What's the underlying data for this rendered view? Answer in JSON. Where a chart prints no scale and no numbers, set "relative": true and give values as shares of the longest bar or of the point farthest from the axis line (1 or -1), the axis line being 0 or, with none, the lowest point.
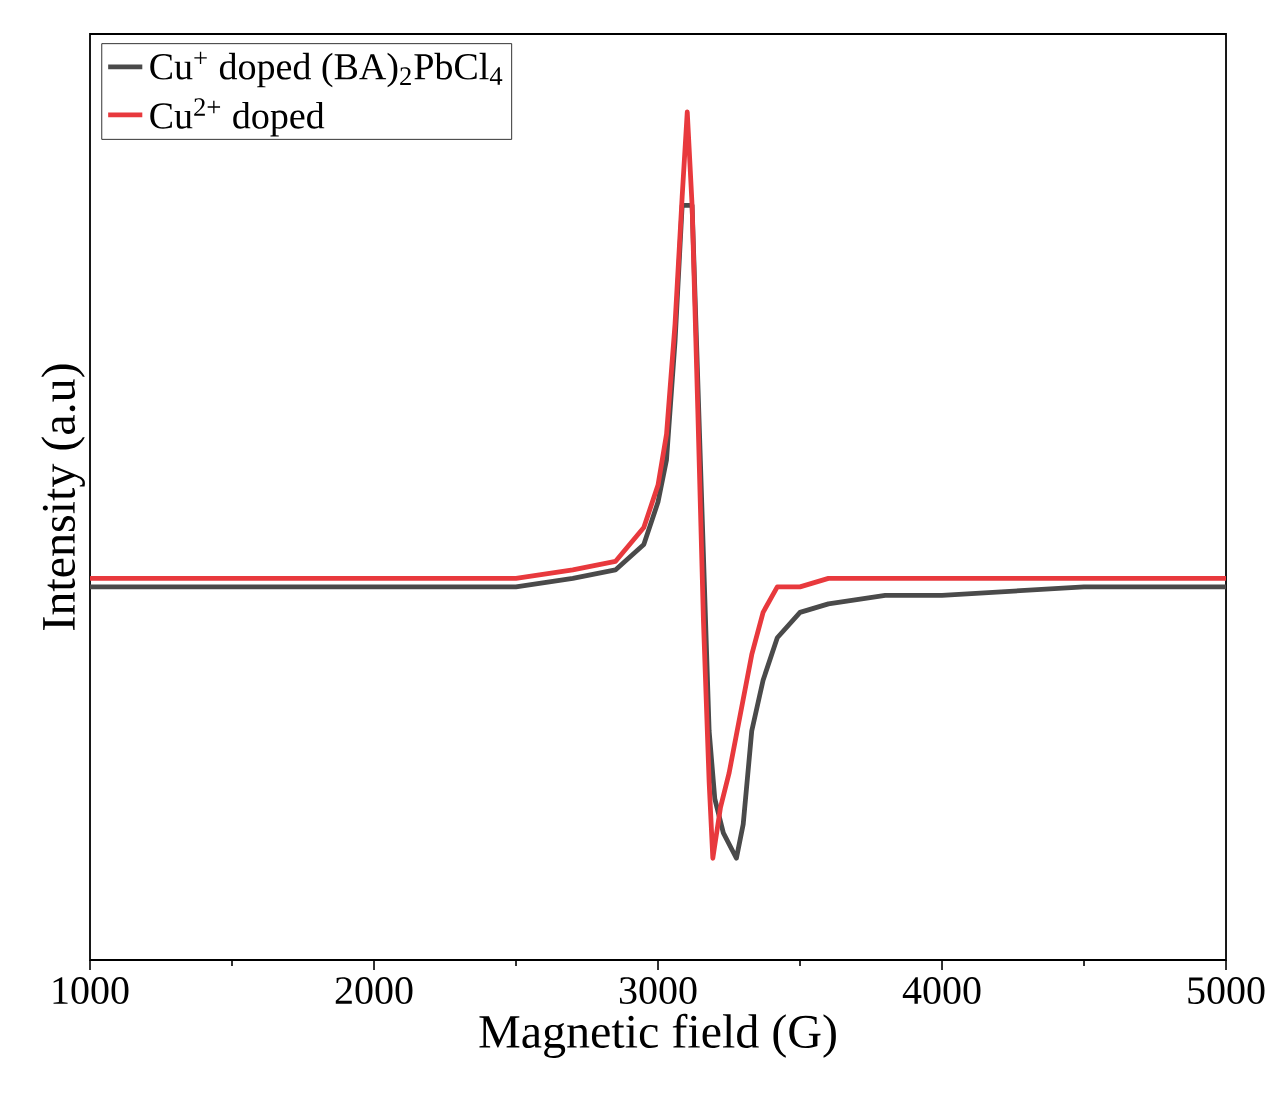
{
  "chart_data": {
    "type": "line",
    "xlabel": "Magnetic field (G)",
    "ylabel": "Intensity (a.u)",
    "relative": true,
    "xlim": [
      1000,
      5000
    ],
    "xticks": [
      1000,
      2000,
      3000,
      4000,
      5000
    ],
    "tick_labels": "x",
    "legend": "top left",
    "grid": false,
    "marker": "none",
    "line_style": "solid",
    "series": [
      {
        "name": "Cu$^{+}$ doped (BA)$_{2}$PbCl$_{4}$",
        "color": "#4a4a4a",
        "x": [
          1000,
          2000,
          2500,
          2700,
          2850,
          2950,
          3000,
          3030,
          3060,
          3085,
          3103,
          3120,
          3140,
          3160,
          3180,
          3200,
          3230,
          3276,
          3300,
          3330,
          3370,
          3420,
          3500,
          3600,
          3800,
          4000,
          4500,
          5000
        ],
        "values": [
          0.44,
          0.44,
          0.44,
          0.45,
          0.46,
          0.49,
          0.54,
          0.59,
          0.73,
          0.89,
          null,
          0.89,
          null,
          null,
          0.27,
          0.19,
          0.15,
          0.12,
          0.16,
          0.27,
          0.33,
          0.38,
          0.41,
          0.42,
          0.43,
          0.43,
          0.44,
          0.44
        ]
      },
      {
        "name": "Cu$^{2+}$ doped",
        "color": "#e8393d",
        "x": [
          1000,
          2500,
          2700,
          2850,
          2950,
          3000,
          3030,
          3060,
          3085,
          3103,
          3120,
          3140,
          3160,
          3180,
          3193,
          3220,
          3250,
          3290,
          3330,
          3370,
          3420,
          3500,
          3600,
          3800,
          4000,
          5000
        ],
        "values": [
          0.45,
          0.45,
          0.46,
          0.47,
          0.51,
          0.56,
          0.62,
          0.75,
          0.9,
          1.0,
          0.89,
          0.65,
          0.4,
          0.21,
          0.12,
          0.18,
          0.22,
          0.29,
          0.36,
          0.41,
          0.44,
          0.44,
          0.45,
          0.45,
          0.45,
          0.45
        ]
      }
    ]
  }
}
